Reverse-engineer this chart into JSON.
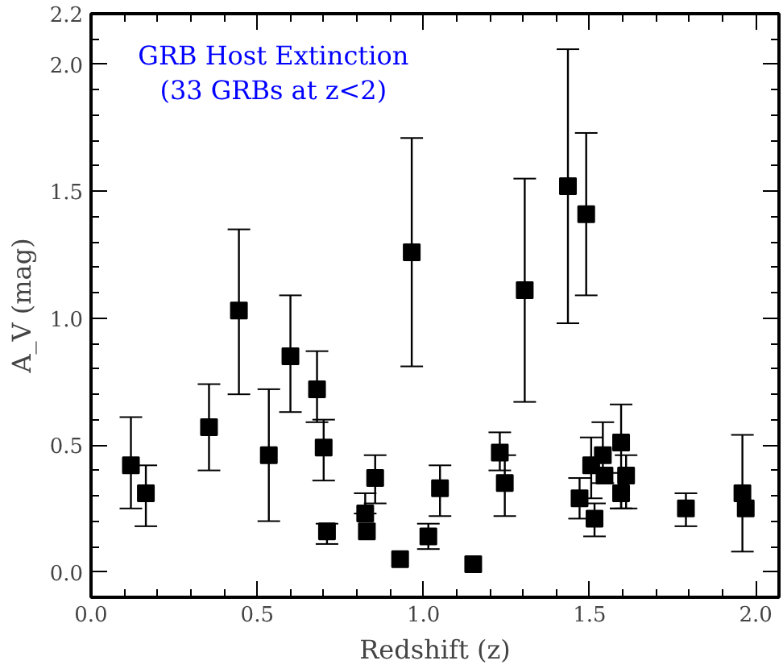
{
  "chart_data": {
    "type": "scatter",
    "title": "GRB Host Extinction\n(33 GRBs at z<2)",
    "xlabel": "Redshift (z)",
    "ylabel": "A_V (mag)",
    "x": [
      0.12,
      0.165,
      0.355,
      0.445,
      0.535,
      0.6,
      0.68,
      0.7,
      0.71,
      0.825,
      0.83,
      0.855,
      0.93,
      1.015,
      1.05,
      0.965,
      1.15,
      1.23,
      1.245,
      1.305,
      1.435,
      1.49,
      1.47,
      1.505,
      1.515,
      1.54,
      1.545,
      1.595,
      1.595,
      1.61,
      1.79,
      1.96,
      1.97
    ],
    "series": [
      {
        "color": "#000000",
        "values": [
          0.42,
          0.31,
          0.57,
          1.03,
          0.46,
          0.85,
          0.72,
          0.49,
          0.16,
          0.23,
          0.16,
          0.37,
          0.05,
          0.14,
          0.33,
          1.26,
          0.03,
          0.47,
          0.35,
          1.11,
          1.52,
          1.41,
          0.29,
          0.42,
          0.21,
          0.46,
          0.38,
          0.51,
          0.31,
          0.38,
          0.25,
          0.31,
          0.25
        ],
        "errors": [
          [
            0.25,
            0.61
          ],
          [
            0.18,
            0.42
          ],
          [
            0.4,
            0.74
          ],
          [
            0.7,
            1.35
          ],
          [
            0.2,
            0.72
          ],
          [
            0.63,
            1.09
          ],
          [
            0.59,
            0.87
          ],
          [
            0.36,
            0.6
          ],
          [
            0.11,
            0.19
          ],
          [
            0.23,
            0.31
          ],
          null,
          [
            0.27,
            0.46
          ],
          null,
          [
            0.09,
            0.19
          ],
          [
            0.22,
            0.42
          ],
          [
            0.81,
            1.71
          ],
          null,
          [
            0.4,
            0.55
          ],
          [
            0.22,
            0.46
          ],
          [
            0.67,
            1.55
          ],
          [
            0.98,
            2.06
          ],
          [
            1.09,
            1.73
          ],
          [
            0.21,
            0.37
          ],
          [
            0.29,
            0.53
          ],
          [
            0.14,
            0.27
          ],
          [
            0.35,
            0.59
          ],
          null,
          [
            0.25,
            0.66
          ],
          [
            0.25,
            0.39
          ],
          [
            0.25,
            0.46
          ],
          [
            0.18,
            0.31
          ],
          [
            0.08,
            0.54
          ],
          null
        ]
      }
    ],
    "xlim": [
      0,
      2.07
    ],
    "ylim": [
      -0.1,
      2.2
    ],
    "xticks": [
      {
        "value": 0,
        "label": "0.0"
      },
      {
        "value": 0.1,
        "label": null
      },
      {
        "value": 0.2,
        "label": null
      },
      {
        "value": 0.3,
        "label": null
      },
      {
        "value": 0.4,
        "label": null
      },
      {
        "value": 0.5,
        "label": "0.5"
      },
      {
        "value": 0.6,
        "label": null
      },
      {
        "value": 0.7,
        "label": null
      },
      {
        "value": 0.8,
        "label": null
      },
      {
        "value": 0.9,
        "label": null
      },
      {
        "value": 1.0,
        "label": "1.0"
      },
      {
        "value": 1.1,
        "label": null
      },
      {
        "value": 1.2,
        "label": null
      },
      {
        "value": 1.3,
        "label": null
      },
      {
        "value": 1.4,
        "label": null
      },
      {
        "value": 1.5,
        "label": "1.5"
      },
      {
        "value": 1.6,
        "label": null
      },
      {
        "value": 1.7,
        "label": null
      },
      {
        "value": 1.8,
        "label": null
      },
      {
        "value": 1.9,
        "label": null
      },
      {
        "value": 2.0,
        "label": "2.0"
      }
    ],
    "yticks": [
      {
        "value": 0,
        "label": "0.0"
      },
      {
        "value": 0.1,
        "label": null
      },
      {
        "value": 0.2,
        "label": null
      },
      {
        "value": 0.3,
        "label": null
      },
      {
        "value": 0.4,
        "label": null
      },
      {
        "value": 0.5,
        "label": "0.5"
      },
      {
        "value": 0.6,
        "label": null
      },
      {
        "value": 0.7,
        "label": null
      },
      {
        "value": 0.8,
        "label": null
      },
      {
        "value": 0.9,
        "label": null
      },
      {
        "value": 1.0,
        "label": "1.0"
      },
      {
        "value": 1.1,
        "label": null
      },
      {
        "value": 1.2,
        "label": null
      },
      {
        "value": 1.3,
        "label": null
      },
      {
        "value": 1.4,
        "label": null
      },
      {
        "value": 1.5,
        "label": "1.5"
      },
      {
        "value": 1.6,
        "label": null
      },
      {
        "value": 1.7,
        "label": null
      },
      {
        "value": 1.8,
        "label": null
      },
      {
        "value": 1.9,
        "label": null
      },
      {
        "value": 2.0,
        "label": "2.0"
      },
      {
        "value": 2.1,
        "label": null
      },
      {
        "value": 2.2,
        "label": "2.2"
      }
    ],
    "marker": "square",
    "grid": false
  }
}
